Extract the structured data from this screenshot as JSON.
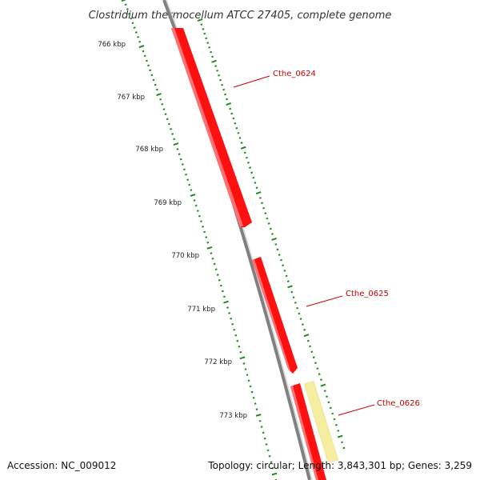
{
  "title": "Clostridium thermocellum ATCC 27405, complete genome",
  "footer": {
    "accession": "Accession: NC_009012",
    "summary": "Topology: circular; Length: 3,843,301 bp; Genes: 3,259"
  },
  "tick_labels": [
    "766 kbp",
    "767 kbp",
    "768 kbp",
    "769 kbp",
    "770 kbp",
    "771 kbp",
    "772 kbp",
    "773 kbp"
  ],
  "genes": [
    {
      "name": "Cthe_0624",
      "color": "#ff0000"
    },
    {
      "name": "Cthe_0625",
      "color": "#ff0000"
    },
    {
      "name": "Cthe_0626",
      "color": "#ff0000"
    }
  ],
  "colors": {
    "backbone": "#808080",
    "forward_strand_gene": "#ff0000",
    "reverse_strand_feature": "#f5eea0",
    "gc_skew_ticks": "#1f8a1f",
    "label_color": "#cc0000"
  }
}
